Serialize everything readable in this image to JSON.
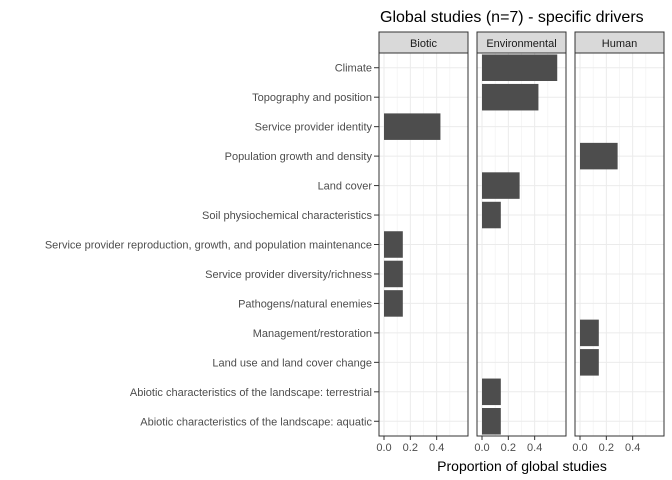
{
  "chart_data": {
    "type": "bar",
    "orientation": "horizontal",
    "title": "Global studies (n=7) - specific drivers",
    "xlabel": "Proportion of global studies",
    "ylabel": "",
    "xlim": [
      0,
      0.6
    ],
    "x_ticks": [
      0.0,
      0.2,
      0.4
    ],
    "x_tick_labels": [
      "0.0",
      "0.2",
      "0.4"
    ],
    "grid": true,
    "bar_color": "#4d4d4d",
    "strip_color": "#d9d9d9",
    "categories": [
      "Climate",
      "Topography and position",
      "Service provider identity",
      "Population growth and density",
      "Land cover",
      "Soil physiochemical characteristics",
      "Service provider reproduction, growth, and population maintenance",
      "Service provider diversity/richness",
      "Pathogens/natural enemies",
      "Management/restoration",
      "Land use and land cover change",
      "Abiotic characteristics of the landscape: terrestrial",
      "Abiotic characteristics of the landscape: aquatic"
    ],
    "facets": [
      {
        "name": "Biotic",
        "values": [
          0,
          0,
          0.4286,
          0,
          0,
          0,
          0.1429,
          0.1429,
          0.1429,
          0,
          0,
          0,
          0
        ]
      },
      {
        "name": "Environmental",
        "values": [
          0.5714,
          0.4286,
          0,
          0,
          0.2857,
          0.1429,
          0,
          0,
          0,
          0,
          0,
          0.1429,
          0.1429
        ]
      },
      {
        "name": "Human",
        "values": [
          0,
          0,
          0,
          0.2857,
          0,
          0,
          0,
          0,
          0,
          0.1429,
          0.1429,
          0,
          0
        ]
      }
    ]
  }
}
